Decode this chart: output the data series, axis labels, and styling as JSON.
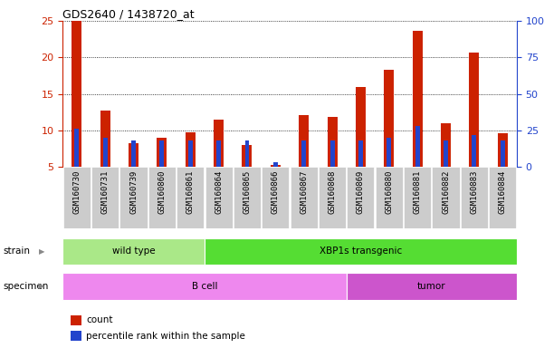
{
  "title": "GDS2640 / 1438720_at",
  "samples": [
    "GSM160730",
    "GSM160731",
    "GSM160739",
    "GSM160860",
    "GSM160861",
    "GSM160864",
    "GSM160865",
    "GSM160866",
    "GSM160867",
    "GSM160868",
    "GSM160869",
    "GSM160880",
    "GSM160881",
    "GSM160882",
    "GSM160883",
    "GSM160884"
  ],
  "count_values": [
    25.0,
    12.7,
    8.3,
    9.0,
    9.7,
    11.5,
    8.0,
    5.3,
    12.1,
    11.8,
    15.9,
    18.3,
    23.6,
    11.0,
    20.7,
    9.6
  ],
  "percentile_values": [
    26,
    20,
    18,
    18,
    18,
    18,
    18,
    3,
    18,
    18,
    18,
    20,
    28,
    18,
    22,
    18
  ],
  "ylim_left": [
    5,
    25
  ],
  "ylim_right": [
    0,
    100
  ],
  "yticks_left": [
    5,
    10,
    15,
    20,
    25
  ],
  "yticks_right": [
    0,
    25,
    50,
    75,
    100
  ],
  "bar_color": "#cc2200",
  "percentile_color": "#2244cc",
  "bar_width": 0.35,
  "strain_wild_type": {
    "text": "wild type",
    "start": 0,
    "end": 5,
    "color": "#aae888"
  },
  "strain_xbp1s": {
    "text": "XBP1s transgenic",
    "start": 5,
    "end": 16,
    "color": "#55dd33"
  },
  "specimen_bcell": {
    "text": "B cell",
    "start": 0,
    "end": 10,
    "color": "#ee88ee"
  },
  "specimen_tumor": {
    "text": "tumor",
    "start": 10,
    "end": 16,
    "color": "#cc55cc"
  },
  "strain_row_label": "strain",
  "specimen_row_label": "specimen",
  "legend_count": "count",
  "legend_percentile": "percentile rank within the sample",
  "bg_color": "#ffffff",
  "tick_label_bg": "#cccccc",
  "left_tick_color": "#cc2200",
  "right_tick_color": "#2244cc"
}
